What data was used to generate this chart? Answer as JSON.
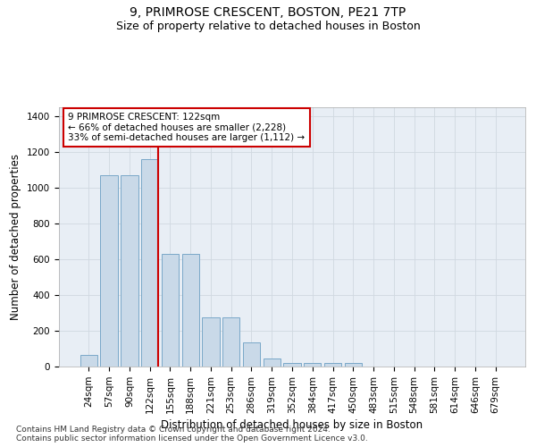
{
  "title1": "9, PRIMROSE CRESCENT, BOSTON, PE21 7TP",
  "title2": "Size of property relative to detached houses in Boston",
  "xlabel": "Distribution of detached houses by size in Boston",
  "ylabel": "Number of detached properties",
  "footnote": "Contains HM Land Registry data © Crown copyright and database right 2024.\nContains public sector information licensed under the Open Government Licence v3.0.",
  "bar_labels": [
    "24sqm",
    "57sqm",
    "90sqm",
    "122sqm",
    "155sqm",
    "188sqm",
    "221sqm",
    "253sqm",
    "286sqm",
    "319sqm",
    "352sqm",
    "384sqm",
    "417sqm",
    "450sqm",
    "483sqm",
    "515sqm",
    "548sqm",
    "581sqm",
    "614sqm",
    "646sqm",
    "679sqm"
  ],
  "bar_values": [
    63,
    1070,
    1070,
    1160,
    630,
    630,
    275,
    275,
    135,
    45,
    20,
    20,
    20,
    20,
    0,
    0,
    0,
    0,
    0,
    0,
    0
  ],
  "bar_color": "#c9d9e8",
  "bar_edge_color": "#7aa8c8",
  "red_line_index": 3,
  "annotation_text": "9 PRIMROSE CRESCENT: 122sqm\n← 66% of detached houses are smaller (2,228)\n33% of semi-detached houses are larger (1,112) →",
  "annotation_box_color": "#ffffff",
  "annotation_box_edge": "#cc0000",
  "red_line_color": "#cc0000",
  "ylim": [
    0,
    1450
  ],
  "yticks": [
    0,
    200,
    400,
    600,
    800,
    1000,
    1200,
    1400
  ],
  "grid_color": "#d0d8e0",
  "bg_color": "#e8eef5",
  "title1_fontsize": 10,
  "title2_fontsize": 9,
  "xlabel_fontsize": 8.5,
  "ylabel_fontsize": 8.5,
  "tick_fontsize": 7.5,
  "footnote_fontsize": 6.5
}
